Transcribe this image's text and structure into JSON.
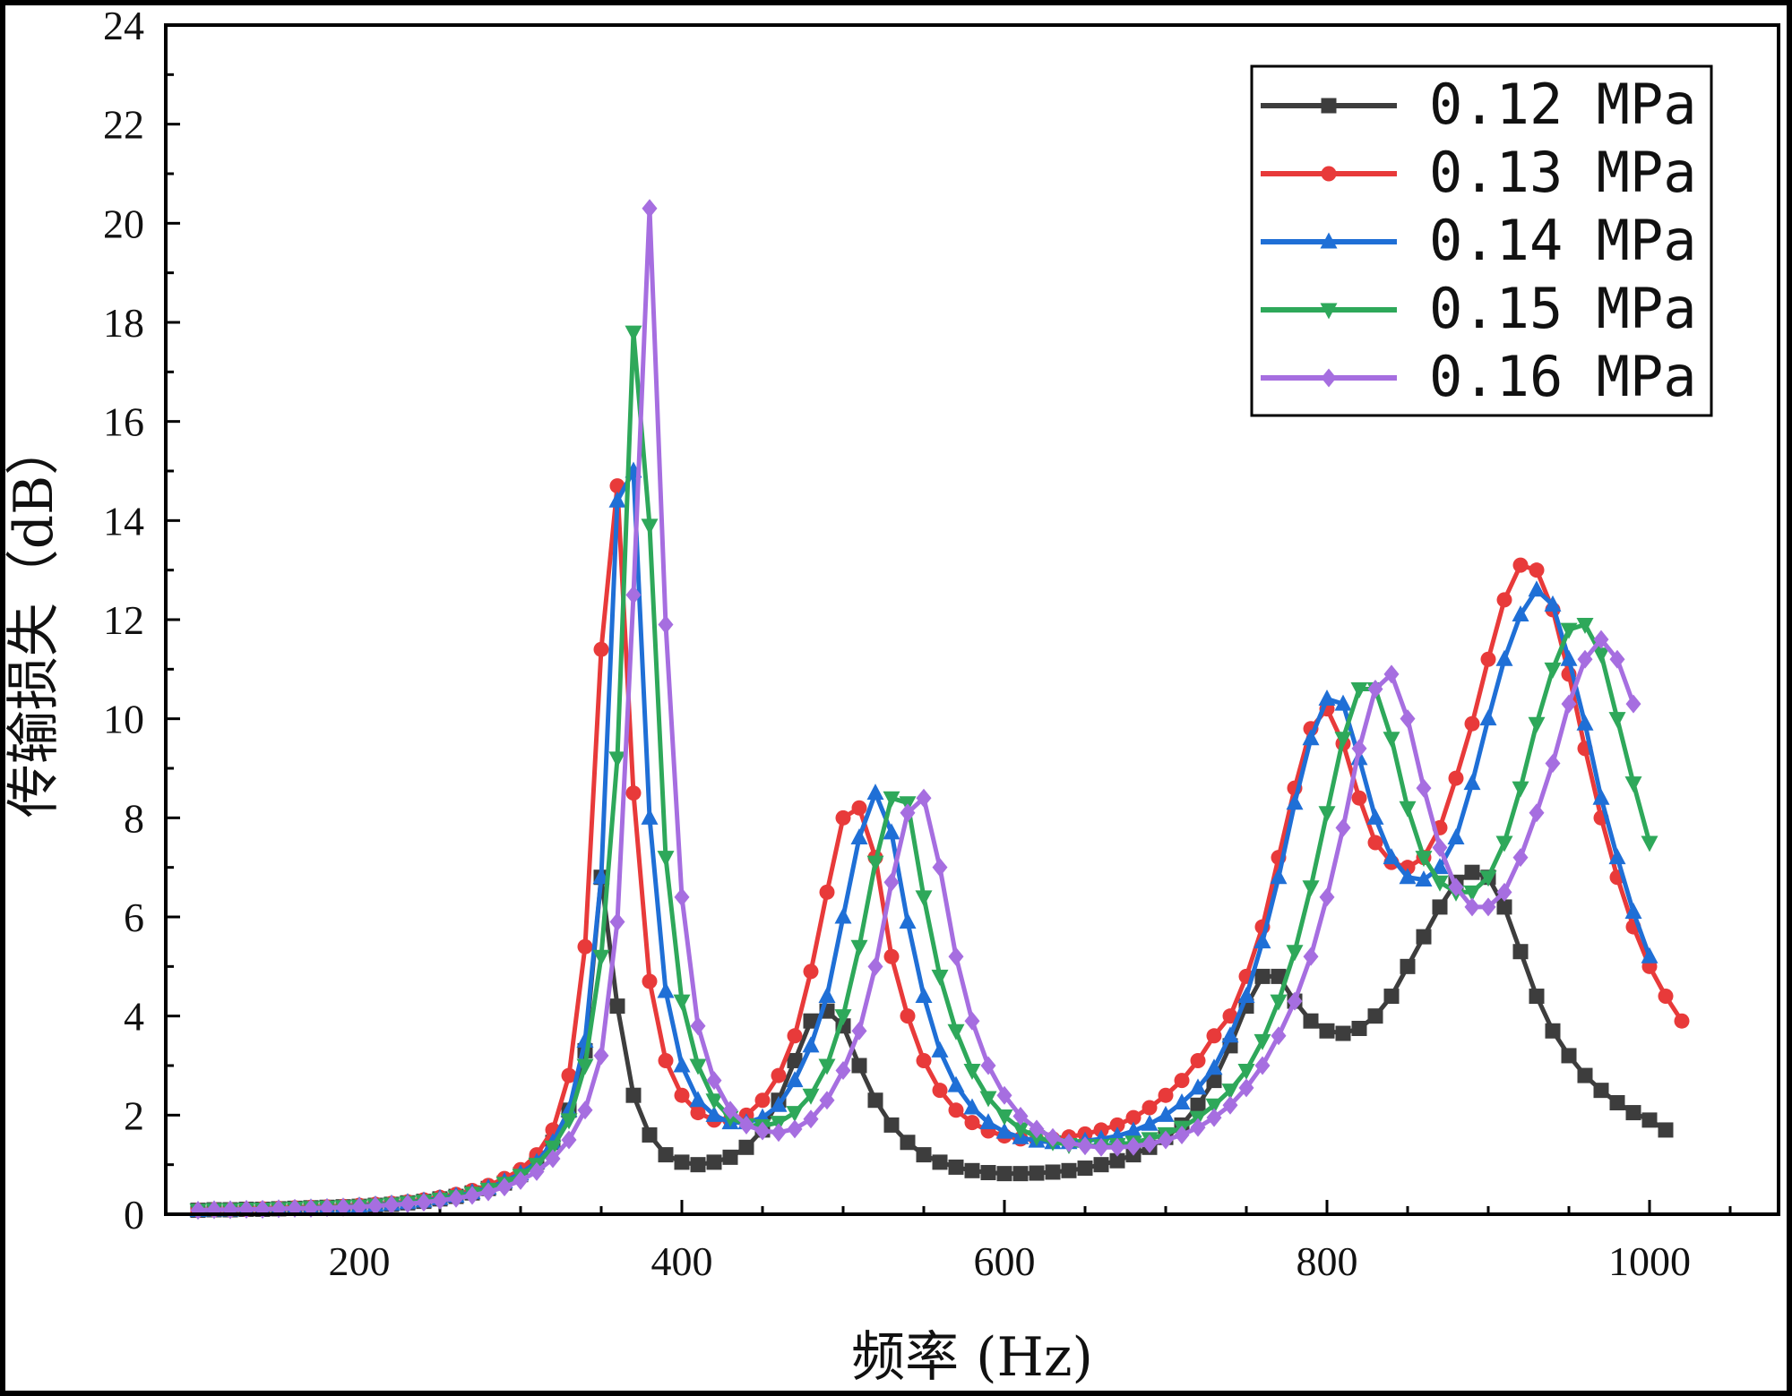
{
  "chart_data": {
    "type": "line",
    "title": "",
    "xlabel": "频率 (Hz)",
    "ylabel": "传输损失（dB）",
    "xlim": [
      80,
      1080
    ],
    "ylim": [
      0,
      24
    ],
    "x_ticks": [
      200,
      400,
      600,
      800,
      1000
    ],
    "x_tick_labels": [
      "200",
      "400",
      "600",
      "800",
      "1000"
    ],
    "y_ticks": [
      0,
      2,
      4,
      6,
      8,
      10,
      12,
      14,
      16,
      18,
      20,
      22,
      24
    ],
    "y_tick_labels": [
      "0",
      "2",
      "4",
      "6",
      "8",
      "10",
      "12",
      "14",
      "16",
      "18",
      "20",
      "22",
      "24"
    ],
    "grid": false,
    "legend_position": "top-right",
    "x_start": 100,
    "x_step": 10,
    "series": [
      {
        "name": "0.12 MPa",
        "color": "#3d3d3d",
        "marker": "square",
        "values": [
          0.08,
          0.09,
          0.09,
          0.1,
          0.1,
          0.11,
          0.12,
          0.13,
          0.14,
          0.15,
          0.16,
          0.18,
          0.2,
          0.23,
          0.26,
          0.31,
          0.36,
          0.43,
          0.52,
          0.63,
          0.8,
          1.05,
          1.45,
          2.1,
          3.3,
          6.8,
          4.2,
          2.4,
          1.6,
          1.2,
          1.05,
          1.0,
          1.05,
          1.15,
          1.35,
          1.7,
          2.3,
          3.1,
          3.9,
          4.1,
          3.8,
          3.0,
          2.3,
          1.8,
          1.45,
          1.2,
          1.05,
          0.95,
          0.88,
          0.84,
          0.82,
          0.82,
          0.83,
          0.85,
          0.88,
          0.93,
          1.0,
          1.08,
          1.2,
          1.35,
          1.55,
          1.8,
          2.2,
          2.7,
          3.4,
          4.2,
          4.8,
          4.8,
          4.3,
          3.9,
          3.7,
          3.65,
          3.75,
          4.0,
          4.4,
          5.0,
          5.6,
          6.2,
          6.7,
          6.9,
          6.8,
          6.2,
          5.3,
          4.4,
          3.7,
          3.2,
          2.8,
          2.5,
          2.25,
          2.05,
          1.9,
          1.7
        ]
      },
      {
        "name": "0.13 MPa",
        "color": "#e83a3a",
        "marker": "circle",
        "values": [
          0.08,
          0.09,
          0.09,
          0.1,
          0.11,
          0.12,
          0.13,
          0.14,
          0.15,
          0.16,
          0.18,
          0.2,
          0.22,
          0.25,
          0.29,
          0.34,
          0.4,
          0.48,
          0.58,
          0.72,
          0.9,
          1.2,
          1.7,
          2.8,
          5.4,
          11.4,
          14.7,
          8.5,
          4.7,
          3.1,
          2.4,
          2.05,
          1.9,
          1.9,
          2.0,
          2.3,
          2.8,
          3.6,
          4.9,
          6.5,
          8.0,
          8.2,
          7.2,
          5.2,
          4.0,
          3.1,
          2.5,
          2.1,
          1.85,
          1.68,
          1.58,
          1.52,
          1.5,
          1.52,
          1.56,
          1.62,
          1.7,
          1.8,
          1.95,
          2.15,
          2.4,
          2.7,
          3.1,
          3.6,
          4.0,
          4.8,
          5.8,
          7.2,
          8.6,
          9.8,
          10.2,
          9.5,
          8.4,
          7.5,
          7.1,
          7.0,
          7.2,
          7.8,
          8.8,
          9.9,
          11.2,
          12.4,
          13.1,
          13.0,
          12.2,
          10.9,
          9.4,
          8.0,
          6.8,
          5.8,
          5.0,
          4.4,
          3.9
        ]
      },
      {
        "name": "0.14 MPa",
        "color": "#1f6fd6",
        "marker": "triangle-up",
        "values": [
          0.08,
          0.09,
          0.09,
          0.1,
          0.1,
          0.11,
          0.12,
          0.13,
          0.14,
          0.15,
          0.17,
          0.19,
          0.21,
          0.24,
          0.27,
          0.32,
          0.37,
          0.44,
          0.53,
          0.66,
          0.82,
          1.05,
          1.45,
          2.1,
          3.5,
          6.8,
          14.4,
          15.0,
          8.0,
          4.5,
          3.0,
          2.3,
          2.0,
          1.85,
          1.85,
          1.95,
          2.2,
          2.7,
          3.4,
          4.4,
          6.0,
          7.6,
          8.5,
          7.7,
          5.9,
          4.4,
          3.3,
          2.6,
          2.15,
          1.85,
          1.66,
          1.55,
          1.48,
          1.45,
          1.45,
          1.48,
          1.52,
          1.58,
          1.68,
          1.82,
          2.0,
          2.25,
          2.55,
          2.95,
          3.6,
          4.4,
          5.5,
          6.8,
          8.3,
          9.6,
          10.4,
          10.3,
          9.2,
          8.0,
          7.2,
          6.8,
          6.75,
          7.0,
          7.6,
          8.7,
          10.0,
          11.2,
          12.1,
          12.6,
          12.3,
          11.2,
          9.9,
          8.4,
          7.2,
          6.1,
          5.2
        ]
      },
      {
        "name": "0.15 MPa",
        "color": "#2ea85a",
        "marker": "triangle-down",
        "values": [
          0.08,
          0.09,
          0.09,
          0.1,
          0.1,
          0.11,
          0.12,
          0.13,
          0.14,
          0.15,
          0.16,
          0.18,
          0.2,
          0.23,
          0.26,
          0.3,
          0.35,
          0.42,
          0.5,
          0.62,
          0.78,
          1.0,
          1.35,
          1.9,
          3.0,
          5.2,
          9.2,
          17.8,
          13.9,
          7.2,
          4.3,
          3.0,
          2.3,
          1.95,
          1.8,
          1.78,
          1.85,
          2.05,
          2.4,
          3.0,
          4.0,
          5.4,
          7.1,
          8.4,
          8.3,
          6.4,
          4.8,
          3.7,
          2.9,
          2.35,
          1.98,
          1.72,
          1.56,
          1.46,
          1.4,
          1.38,
          1.38,
          1.4,
          1.45,
          1.52,
          1.62,
          1.75,
          1.95,
          2.2,
          2.5,
          2.9,
          3.5,
          4.3,
          5.3,
          6.6,
          8.1,
          9.6,
          10.6,
          10.6,
          9.6,
          8.2,
          7.2,
          6.7,
          6.5,
          6.5,
          6.8,
          7.5,
          8.6,
          9.9,
          11.0,
          11.8,
          11.9,
          11.3,
          10.0,
          8.7,
          7.5
        ]
      },
      {
        "name": "0.16 MPa",
        "color": "#a66ee0",
        "marker": "diamond",
        "values": [
          0.08,
          0.09,
          0.09,
          0.1,
          0.1,
          0.11,
          0.12,
          0.12,
          0.13,
          0.14,
          0.15,
          0.17,
          0.19,
          0.21,
          0.24,
          0.28,
          0.32,
          0.38,
          0.45,
          0.55,
          0.68,
          0.86,
          1.12,
          1.5,
          2.1,
          3.2,
          5.9,
          12.5,
          20.3,
          11.9,
          6.4,
          3.8,
          2.7,
          2.1,
          1.8,
          1.68,
          1.65,
          1.72,
          1.92,
          2.3,
          2.9,
          3.7,
          5.0,
          6.7,
          8.1,
          8.4,
          7.0,
          5.2,
          3.9,
          3.0,
          2.4,
          1.98,
          1.72,
          1.55,
          1.44,
          1.38,
          1.35,
          1.35,
          1.37,
          1.42,
          1.5,
          1.6,
          1.75,
          1.95,
          2.2,
          2.55,
          3.0,
          3.6,
          4.3,
          5.2,
          6.4,
          7.8,
          9.4,
          10.6,
          10.9,
          10.0,
          8.6,
          7.4,
          6.6,
          6.2,
          6.2,
          6.5,
          7.2,
          8.1,
          9.1,
          10.3,
          11.2,
          11.6,
          11.2,
          10.3
        ]
      }
    ]
  }
}
